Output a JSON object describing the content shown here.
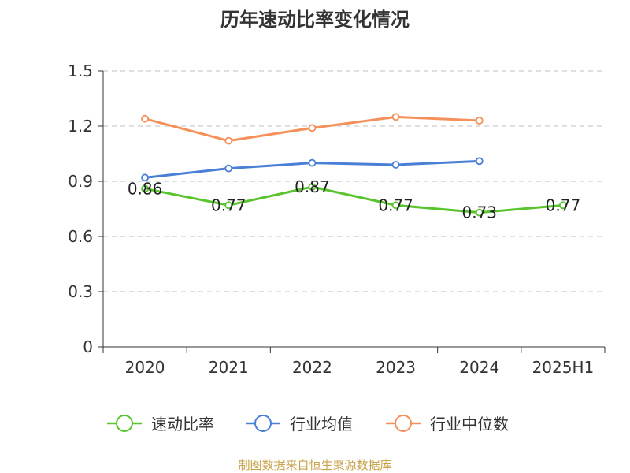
{
  "chart_data": {
    "type": "line",
    "title": "历年速动比率变化情况",
    "categories": [
      "2020",
      "2021",
      "2022",
      "2023",
      "2024",
      "2025H1"
    ],
    "ylim": [
      0,
      1.5
    ],
    "yticks": [
      "0",
      "0.3",
      "0.6",
      "0.9",
      "1.2",
      "1.5"
    ],
    "grid": true,
    "legend_position": "bottom",
    "series": [
      {
        "name": "速动比率",
        "color": "#5ac42f",
        "values": [
          0.86,
          0.77,
          0.87,
          0.77,
          0.73,
          0.77
        ],
        "labels": [
          "0.86",
          "0.77",
          "0.87",
          "0.77",
          "0.73",
          "0.77"
        ]
      },
      {
        "name": "行业均值",
        "color": "#4a7fd6",
        "values": [
          0.92,
          0.97,
          1.0,
          0.99,
          1.01,
          null
        ]
      },
      {
        "name": "行业中位数",
        "color": "#f5905a",
        "values": [
          1.24,
          1.12,
          1.19,
          1.25,
          1.23,
          null
        ]
      }
    ],
    "source": "制图数据来自恒生聚源数据库"
  }
}
